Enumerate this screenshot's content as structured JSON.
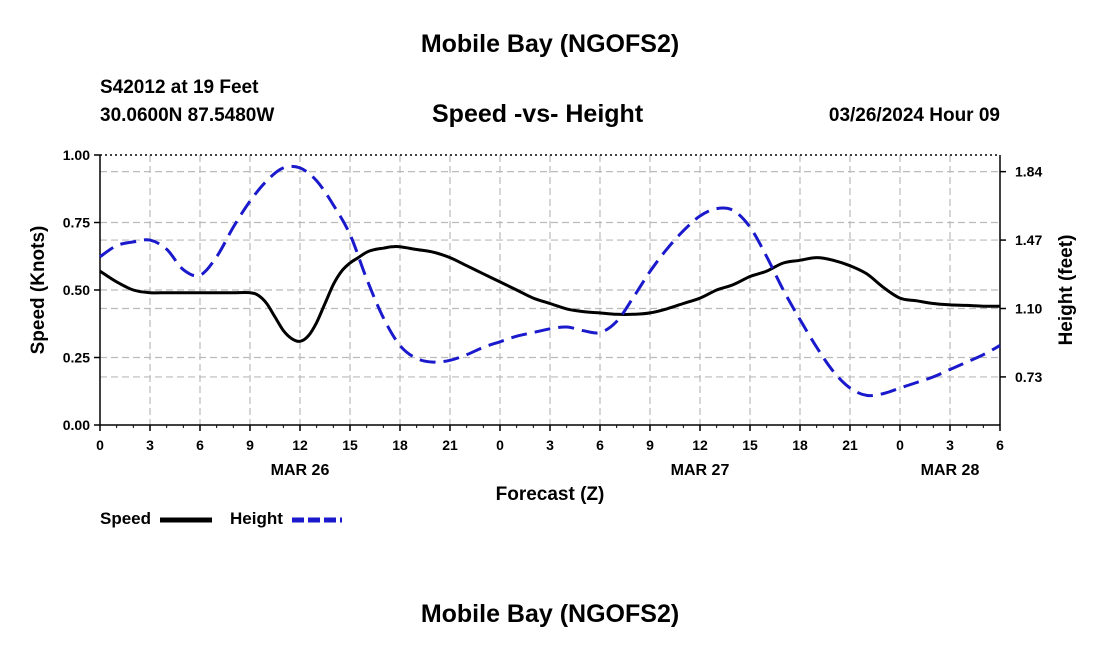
{
  "header": {
    "title": "Mobile Bay (NGOFS2)",
    "station": "S42012 at 19 Feet",
    "coordinates": "30.0600N  87.5480W",
    "subtitle": "Speed -vs- Height",
    "datetime": "03/26/2024 Hour 09"
  },
  "footer": {
    "title": "Mobile Bay (NGOFS2)"
  },
  "legend": {
    "speed_label": "Speed",
    "height_label": "Height"
  },
  "colors": {
    "speed": "#000000",
    "height": "#1a1acc",
    "grid": "#bbbbbb"
  },
  "chart_data": {
    "type": "line",
    "title": "Speed -vs- Height",
    "xlabel": "Forecast (Z)",
    "ylabel": "Speed (Knots)",
    "y2label": "Height (feet)",
    "xlim": [
      0,
      54
    ],
    "ylim": [
      0,
      1.0
    ],
    "y2lim": [
      0.47,
      1.93
    ],
    "x_ticks": [
      0,
      3,
      6,
      9,
      12,
      15,
      18,
      21,
      24,
      27,
      30,
      33,
      36,
      39,
      42,
      45,
      48,
      51,
      54
    ],
    "x_tick_labels": [
      "0",
      "3",
      "6",
      "9",
      "12",
      "15",
      "18",
      "21",
      "0",
      "3",
      "6",
      "9",
      "12",
      "15",
      "18",
      "21",
      "0",
      "3",
      "6"
    ],
    "y_ticks": [
      "0.00",
      "0.25",
      "0.50",
      "0.75",
      "1.00"
    ],
    "y2_ticks": [
      "0.73",
      "1.10",
      "1.47",
      "1.84"
    ],
    "date_labels": [
      {
        "x": 12,
        "label": "MAR 26"
      },
      {
        "x": 36,
        "label": "MAR 27"
      },
      {
        "x": 51,
        "label": "MAR 28"
      }
    ],
    "grid": true,
    "legend_position": "bottom-left",
    "series": [
      {
        "name": "Speed",
        "axis": "left",
        "style": "solid",
        "x": [
          0,
          1,
          2,
          3,
          4,
          5,
          6,
          7,
          8,
          9,
          9.5,
          10,
          10.5,
          11,
          11.5,
          12,
          12.5,
          13,
          13.5,
          14,
          14.5,
          15,
          15.5,
          16,
          16.5,
          17,
          17.5,
          18,
          19,
          20,
          21,
          22,
          23,
          24,
          25,
          26,
          27,
          28,
          29,
          30,
          31,
          32,
          33,
          34,
          35,
          36,
          37,
          38,
          39,
          40,
          41,
          42,
          43,
          44,
          45,
          46,
          47,
          48,
          49,
          50,
          51,
          52,
          53,
          54
        ],
        "values": [
          0.57,
          0.53,
          0.5,
          0.49,
          0.49,
          0.49,
          0.49,
          0.49,
          0.49,
          0.49,
          0.48,
          0.45,
          0.4,
          0.35,
          0.32,
          0.31,
          0.33,
          0.38,
          0.45,
          0.52,
          0.57,
          0.6,
          0.62,
          0.64,
          0.65,
          0.655,
          0.66,
          0.66,
          0.65,
          0.64,
          0.62,
          0.59,
          0.56,
          0.53,
          0.5,
          0.47,
          0.45,
          0.43,
          0.42,
          0.415,
          0.41,
          0.41,
          0.415,
          0.43,
          0.45,
          0.47,
          0.5,
          0.52,
          0.55,
          0.57,
          0.6,
          0.61,
          0.62,
          0.61,
          0.59,
          0.56,
          0.51,
          0.47,
          0.46,
          0.45,
          0.445,
          0.443,
          0.44,
          0.44
        ]
      },
      {
        "name": "Height",
        "axis": "right",
        "style": "dashed",
        "x": [
          0,
          1,
          2,
          3,
          4,
          5,
          6,
          7,
          8,
          9,
          10,
          11,
          12,
          13,
          14,
          15,
          16,
          17,
          18,
          19,
          20,
          21,
          22,
          23,
          24,
          25,
          26,
          27,
          28,
          29,
          30,
          31,
          32,
          33,
          34,
          35,
          36,
          37,
          38,
          39,
          40,
          41,
          42,
          43,
          44,
          45,
          46,
          47,
          48,
          49,
          50,
          51,
          52,
          53,
          54
        ],
        "values": [
          1.38,
          1.44,
          1.46,
          1.47,
          1.42,
          1.31,
          1.28,
          1.38,
          1.54,
          1.68,
          1.79,
          1.86,
          1.86,
          1.79,
          1.66,
          1.5,
          1.26,
          1.05,
          0.9,
          0.83,
          0.81,
          0.82,
          0.85,
          0.89,
          0.92,
          0.95,
          0.97,
          0.99,
          1.0,
          0.98,
          0.97,
          1.03,
          1.16,
          1.3,
          1.42,
          1.52,
          1.6,
          1.64,
          1.63,
          1.54,
          1.38,
          1.2,
          1.04,
          0.89,
          0.76,
          0.67,
          0.63,
          0.64,
          0.67,
          0.7,
          0.73,
          0.77,
          0.81,
          0.85,
          0.9
        ]
      }
    ]
  }
}
